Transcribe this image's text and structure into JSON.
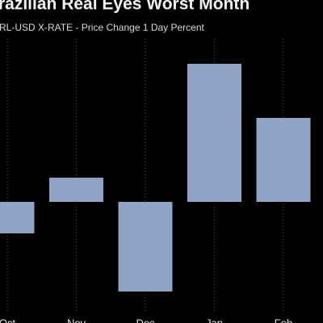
{
  "chart_data": {
    "type": "bar",
    "title": "razilian Real Eyes Worst Month",
    "subtitle": "RL-USD X-RATE - Price Change 1 Day Percent",
    "categories": [
      "Oct",
      "Nov",
      "Dec",
      "Jan",
      "Feb"
    ],
    "values": [
      -0.39,
      0.3,
      -1.11,
      1.71,
      1.04
    ],
    "color": "#8fa3c4",
    "ylim": [
      -1.5,
      2.0
    ],
    "grid": true
  }
}
